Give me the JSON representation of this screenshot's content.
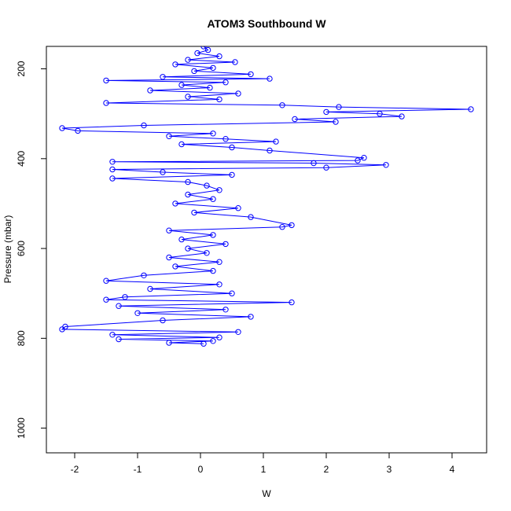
{
  "chart_data": {
    "type": "scatter",
    "title": "ATOM3 Southbound W",
    "xlabel": "W",
    "ylabel": "Pressure (mbar)",
    "xlim": [
      -2.45,
      4.55
    ],
    "ylim": [
      1055,
      150
    ],
    "y_reversed": true,
    "x_ticks": [
      -2,
      -1,
      0,
      1,
      2,
      3,
      4
    ],
    "y_ticks": [
      200,
      400,
      600,
      800,
      1000
    ],
    "x_tick_labels": [
      "-2",
      "-1",
      "0",
      "1",
      "2",
      "3",
      "4"
    ],
    "y_tick_labels": [
      "200",
      "400",
      "600",
      "800",
      "1000"
    ],
    "grid": false,
    "legend": "none",
    "series": [
      {
        "color": "#0000ff",
        "marker": "open-circle",
        "connected": true,
        "points": [
          [
            0.05,
            150
          ],
          [
            0.12,
            158
          ],
          [
            -0.05,
            165
          ],
          [
            0.3,
            172
          ],
          [
            -0.2,
            180
          ],
          [
            0.55,
            185
          ],
          [
            -0.4,
            190
          ],
          [
            0.2,
            198
          ],
          [
            -0.1,
            205
          ],
          [
            0.8,
            212
          ],
          [
            -0.6,
            218
          ],
          [
            1.1,
            222
          ],
          [
            -1.5,
            226
          ],
          [
            0.4,
            230
          ],
          [
            -0.3,
            236
          ],
          [
            0.15,
            242
          ],
          [
            -0.8,
            248
          ],
          [
            0.6,
            255
          ],
          [
            -0.2,
            262
          ],
          [
            0.3,
            268
          ],
          [
            -1.5,
            276
          ],
          [
            1.3,
            281
          ],
          [
            2.2,
            285
          ],
          [
            4.3,
            290
          ],
          [
            2.0,
            296
          ],
          [
            2.85,
            300
          ],
          [
            3.2,
            306
          ],
          [
            1.5,
            312
          ],
          [
            2.15,
            318
          ],
          [
            -0.9,
            326
          ],
          [
            -2.2,
            332
          ],
          [
            -1.95,
            338
          ],
          [
            0.2,
            344
          ],
          [
            -0.5,
            350
          ],
          [
            0.4,
            356
          ],
          [
            1.2,
            362
          ],
          [
            -0.3,
            368
          ],
          [
            0.5,
            375
          ],
          [
            1.1,
            382
          ],
          [
            2.6,
            398
          ],
          [
            2.5,
            404
          ],
          [
            -1.4,
            407
          ],
          [
            1.8,
            410
          ],
          [
            2.95,
            414
          ],
          [
            2.0,
            420
          ],
          [
            -1.4,
            424
          ],
          [
            -0.6,
            430
          ],
          [
            0.5,
            436
          ],
          [
            -1.4,
            444
          ],
          [
            -0.2,
            452
          ],
          [
            0.1,
            460
          ],
          [
            0.3,
            470
          ],
          [
            -0.2,
            480
          ],
          [
            0.2,
            490
          ],
          [
            -0.4,
            500
          ],
          [
            0.6,
            510
          ],
          [
            -0.1,
            520
          ],
          [
            0.8,
            530
          ],
          [
            1.45,
            548
          ],
          [
            1.3,
            552
          ],
          [
            -0.5,
            560
          ],
          [
            0.2,
            570
          ],
          [
            -0.3,
            580
          ],
          [
            0.4,
            590
          ],
          [
            -0.2,
            600
          ],
          [
            0.1,
            610
          ],
          [
            -0.5,
            620
          ],
          [
            0.3,
            630
          ],
          [
            -0.4,
            640
          ],
          [
            0.2,
            650
          ],
          [
            -0.9,
            660
          ],
          [
            -1.5,
            672
          ],
          [
            0.3,
            680
          ],
          [
            -0.8,
            690
          ],
          [
            0.5,
            700
          ],
          [
            -1.2,
            708
          ],
          [
            -1.5,
            714
          ],
          [
            1.45,
            720
          ],
          [
            -1.3,
            728
          ],
          [
            0.4,
            736
          ],
          [
            -1.0,
            744
          ],
          [
            0.8,
            752
          ],
          [
            -0.6,
            760
          ],
          [
            -2.15,
            774
          ],
          [
            -2.2,
            780
          ],
          [
            0.6,
            786
          ],
          [
            -1.4,
            792
          ],
          [
            0.3,
            798
          ],
          [
            -1.3,
            802
          ],
          [
            0.2,
            806
          ],
          [
            -0.5,
            810
          ],
          [
            0.05,
            812
          ]
        ]
      }
    ]
  }
}
